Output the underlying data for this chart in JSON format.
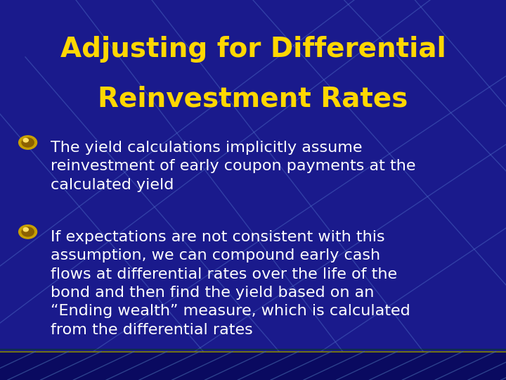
{
  "title_line1": "Adjusting for Differential",
  "title_line2": "Reinvestment Rates",
  "title_color": "#FFD700",
  "title_fontsize": 28,
  "background_color": "#1a1a8c",
  "bullet_color": "#FFFFFF",
  "bullet_fontsize": 16,
  "bullet_marker_color": "#DAA520",
  "bullets": [
    "The yield calculations implicitly assume\nreinvestment of early coupon payments at the\ncalculated yield",
    "If expectations are not consistent with this\nassumption, we can compound early cash\nflows at differential rates over the life of the\nbond and then find the yield based on an\n“Ending wealth” measure, which is calculated\nfrom the differential rates"
  ],
  "line_color": "#5577CC",
  "figsize": [
    7.2,
    5.4
  ],
  "dpi": 100
}
